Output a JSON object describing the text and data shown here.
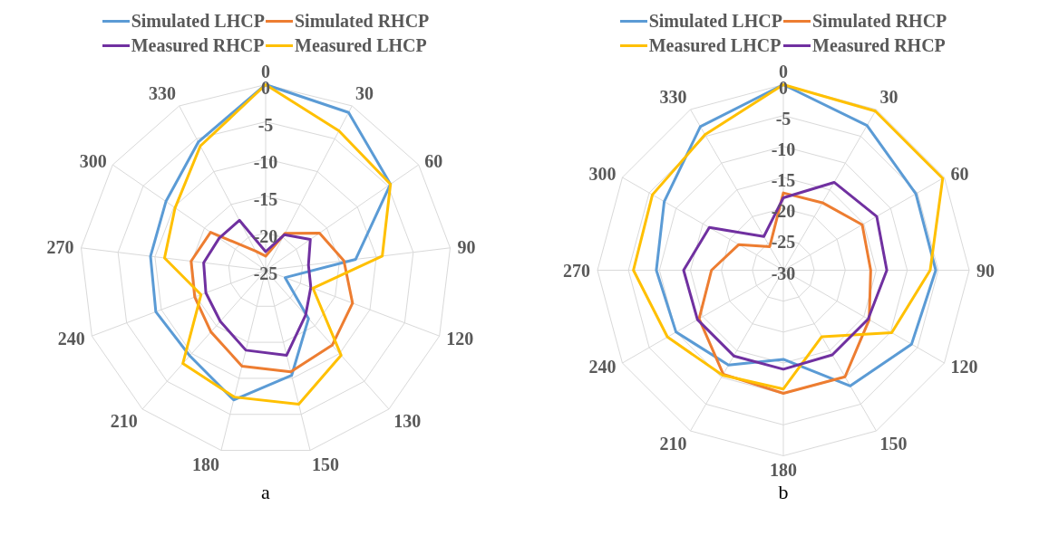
{
  "chart_data": [
    {
      "type": "radar",
      "categories": [
        "0",
        "30",
        "60",
        "90",
        "120",
        "130",
        "150",
        "180",
        "210",
        "240",
        "270",
        "300",
        "330"
      ],
      "ylim": [
        -25,
        0
      ],
      "yticks": [
        -25,
        -20,
        -15,
        -10,
        -5,
        0
      ],
      "grid": true,
      "legend": "top",
      "annotations": [
        "a"
      ],
      "series": [
        {
          "name": "Simulated LHCP",
          "color": "#5b9bd5",
          "values": [
            0,
            -1,
            -4.6,
            -12.8,
            -22.2,
            -16.3,
            -10.4,
            -7,
            -9.6,
            -9.2,
            -9.4,
            -8.7,
            -5.5
          ]
        },
        {
          "name": "Simulated RHCP",
          "color": "#ed7d31",
          "values": [
            -23.1,
            -19.4,
            -16.2,
            -14.4,
            -12.5,
            -11.5,
            -10.9,
            -11.7,
            -13.9,
            -14.8,
            -14.9,
            -16,
            -22.1
          ]
        },
        {
          "name": "Measured RHCP",
          "color": "#7030a0",
          "values": [
            -22.5,
            -19.6,
            -17.7,
            -19.2,
            -18.5,
            -16.9,
            -13.2,
            -13.9,
            -15.8,
            -16.4,
            -16.6,
            -17.4,
            -17.4
          ]
        },
        {
          "name": "Measured LHCP",
          "color": "#ffc000",
          "values": [
            0,
            -3.8,
            -4.6,
            -9.2,
            -18.2,
            -9.7,
            -6.4,
            -7.4,
            -8.2,
            -15.7,
            -11.3,
            -10.2,
            -6.1
          ]
        }
      ]
    },
    {
      "type": "radar",
      "categories": [
        "0",
        "30",
        "60",
        "90",
        "120",
        "150",
        "180",
        "210",
        "240",
        "270",
        "300",
        "330"
      ],
      "ylim": [
        -30,
        0
      ],
      "yticks": [
        -30,
        -25,
        -20,
        -15,
        -10,
        -5,
        0
      ],
      "grid": true,
      "legend": "top",
      "annotations": [
        "b"
      ],
      "series": [
        {
          "name": "Simulated LHCP",
          "color": "#5b9bd5",
          "values": [
            0,
            -3,
            -5.3,
            -5.4,
            -6.1,
            -8.4,
            -15.6,
            -12.3,
            -10,
            -9.5,
            -7.8,
            -3.2
          ]
        },
        {
          "name": "Simulated RHCP",
          "color": "#ed7d31",
          "values": [
            -17.5,
            -17.4,
            -15.3,
            -15.9,
            -14,
            -10.1,
            -10.1,
            -10.6,
            -14.3,
            -18.4,
            -21.7,
            -25.6
          ]
        },
        {
          "name": "Measured LHCP",
          "color": "#ffc000",
          "values": [
            0,
            -0.3,
            -0.3,
            -6.3,
            -9.8,
            -17.6,
            -10.8,
            -10.4,
            -8.4,
            -5.8,
            -5.6,
            -4.7
          ]
        },
        {
          "name": "Measured RHCP",
          "color": "#7030a0",
          "values": [
            -18.3,
            -13.6,
            -12.6,
            -13.3,
            -14.2,
            -14.2,
            -14,
            -14,
            -14,
            -13.9,
            -16.2,
            -23.7
          ]
        }
      ]
    }
  ]
}
